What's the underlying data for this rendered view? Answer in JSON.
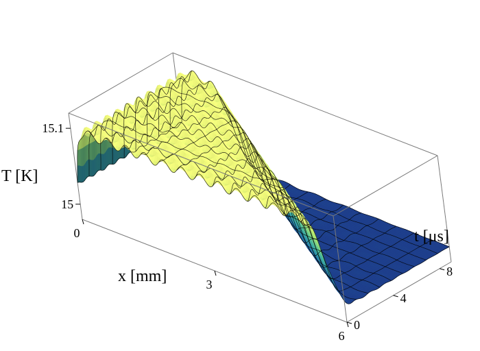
{
  "chart_data": {
    "type": "surface",
    "title": "",
    "xlabel": "x [mm]",
    "ylabel": "t [μs]",
    "zlabel": "T [K]",
    "xlim": [
      0,
      6
    ],
    "ylim": [
      0,
      9
    ],
    "zlim": [
      14.98,
      15.12
    ],
    "x_ticks": [
      {
        "value": 0,
        "label": "0"
      },
      {
        "value": 3,
        "label": "3"
      },
      {
        "value": 6,
        "label": "6"
      }
    ],
    "y_ticks": [
      {
        "value": 0,
        "label": "0"
      },
      {
        "value": 4,
        "label": "4"
      },
      {
        "value": 8,
        "label": "8"
      }
    ],
    "z_ticks": [
      {
        "value": 15.0,
        "label": "15"
      },
      {
        "value": 15.1,
        "label": "15.1"
      }
    ],
    "surface_description": {
      "baseline_T": 15.0,
      "peak_T": 15.1,
      "heated_region": "0 <= x <= 5.7 - 0.5*t (thermal front retreating with time)",
      "front_width_mm": 0.25,
      "ripple_amplitude_K": 0.006,
      "ripple_wavelength_mm": 0.42
    },
    "colormap": [
      "#1e3f8c",
      "#236ea0",
      "#3aa38e",
      "#9fd667",
      "#eff87a"
    ],
    "grid": true,
    "box": true
  }
}
